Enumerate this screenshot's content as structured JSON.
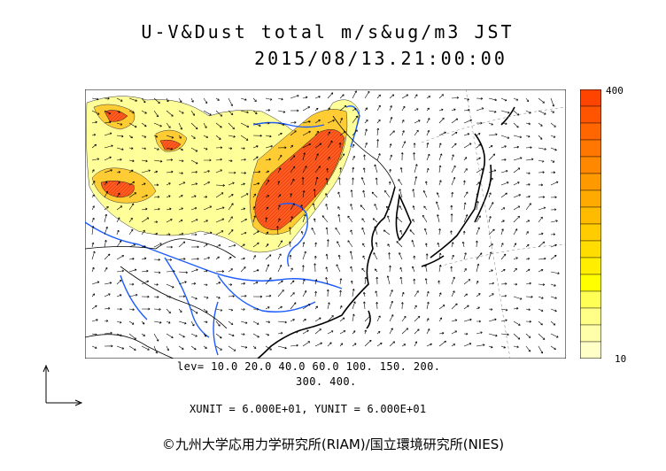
{
  "header": {
    "title_line1": "U-V&Dust total m/s&ug/m3 JST",
    "title_line2": "2015/08/13.21:00:00"
  },
  "colorbar": {
    "max_label": "400",
    "min_label": "10",
    "colors": [
      "#ffffc8",
      "#ffffaa",
      "#ffff88",
      "#ffff55",
      "#ffff00",
      "#ffee00",
      "#ffdd00",
      "#ffcc00",
      "#ffbb00",
      "#ffaa00",
      "#ff9900",
      "#ff8800",
      "#ff7700",
      "#ff6600",
      "#ff5500",
      "#ff4400"
    ]
  },
  "legend": {
    "levels_line1": "lev= 10.0 20.0 40.0 60.0 100. 150. 200.",
    "levels_line2": "300. 400.",
    "units": "XUNIT = 6.000E+01, YUNIT = 6.000E+01"
  },
  "footer": {
    "credit": "©九州大学応用力学研究所(RIAM)/国立環境研究所(NIES)"
  },
  "map_colors": {
    "coast": "#000000",
    "river": "#1c5cff",
    "dust_low": "#ffff99",
    "dust_mid": "#ffcc33",
    "dust_high": "#ff5a1f"
  }
}
